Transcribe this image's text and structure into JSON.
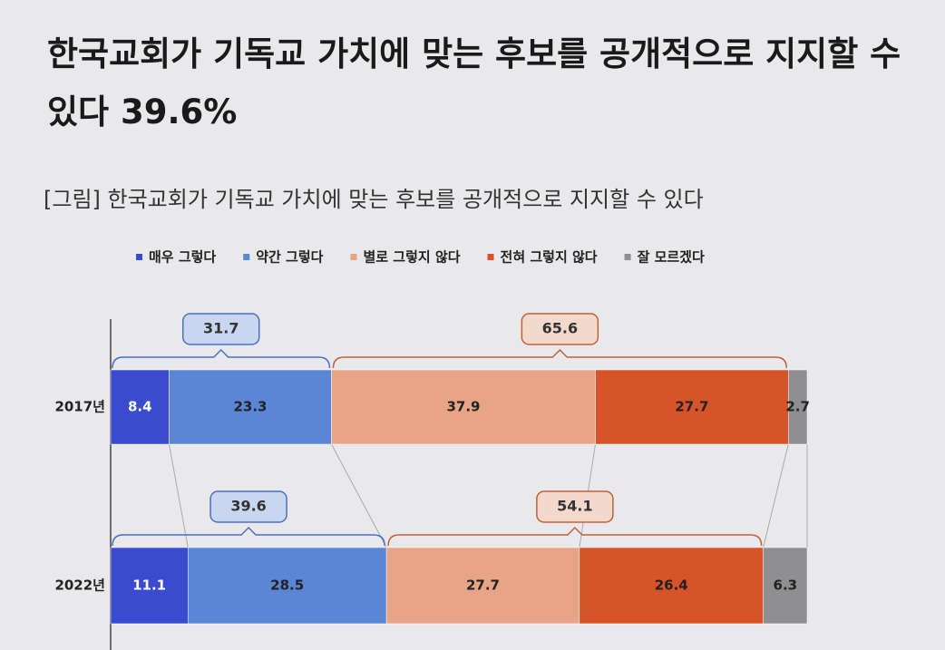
{
  "chart_data": {
    "type": "stacked_bar_horizontal",
    "title": "한국교회가 기독교 가치에 맞는 후보를 공개적으로 지지할 수 있다 39.6%",
    "subtitle": "[그림] 한국교회가 기독교 가치에 맞는 후보를 공개적으로 지지할 수 있다",
    "categories": [
      "2017년",
      "2022년"
    ],
    "series": [
      {
        "name": "매우 그렇다",
        "color": "#3a4bcf",
        "values": [
          8.4,
          11.1
        ]
      },
      {
        "name": "약간 그렇다",
        "color": "#5a86d5",
        "values": [
          23.3,
          28.5
        ]
      },
      {
        "name": "별로 그렇지 않다",
        "color": "#e8a487",
        "values": [
          37.9,
          27.7
        ]
      },
      {
        "name": "전혀 그렇지 않다",
        "color": "#d7532a",
        "values": [
          27.7,
          26.4
        ]
      },
      {
        "name": "잘 모르겠다",
        "color": "#8f8f91",
        "values": [
          2.7,
          6.3
        ]
      }
    ],
    "agree_totals": [
      31.7,
      39.6
    ],
    "disagree_totals": [
      65.6,
      54.1
    ],
    "xlim": [
      0,
      100
    ],
    "legend": "top"
  }
}
